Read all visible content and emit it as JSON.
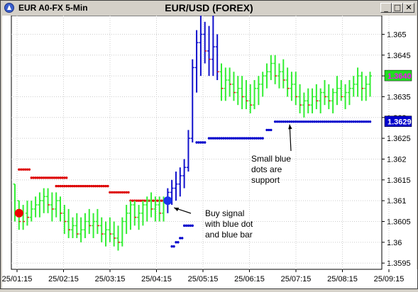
{
  "window": {
    "title": "EUR A0-FX 5-Min",
    "buttons": {
      "minimize": "_",
      "maximize": "□",
      "close": "✕"
    }
  },
  "chart_data": {
    "type": "bar",
    "subtype": "ohlc-price-bars",
    "title": "EUR/USD (FOREX)",
    "x_ticks": [
      "25/01:15",
      "25/02:15",
      "25/03:15",
      "25/04:15",
      "25/05:15",
      "25/06:15",
      "25/07:15",
      "25/08:15",
      "25/09:15"
    ],
    "y_ticks": [
      1.3595,
      1.36,
      1.3605,
      1.361,
      1.3615,
      1.362,
      1.3625,
      1.363,
      1.3635,
      1.364,
      1.3645,
      1.365
    ],
    "y_tick_labels": [
      "1.3595",
      "1.36",
      "1.3605",
      "1.361",
      "1.3615",
      "1.362",
      "1.3625",
      "1.363",
      "1.3635",
      "1.364",
      "1.3645",
      "1.365"
    ],
    "ylim": [
      1.35935,
      1.36545
    ],
    "price_labels": [
      {
        "value": 1.364,
        "text": "1.3640",
        "bg": "#22dd22",
        "fg": "#ff00ff"
      },
      {
        "value": 1.3629,
        "text": "1.3629",
        "bg": "#0000cc",
        "fg": "#ffffff"
      }
    ],
    "bar_colors": {
      "up": "#33ee33",
      "down": "#ee1111",
      "signal": "#1111cc"
    },
    "dot_colors": {
      "resistance": "#dd0000",
      "support": "#0000cc"
    },
    "ohlc": [
      [
        1.3614,
        1.3614,
        1.3605,
        1.3607
      ],
      [
        1.361,
        1.361,
        1.3603,
        1.3605
      ],
      [
        1.3607,
        1.3609,
        1.3603,
        1.3605
      ],
      [
        1.3607,
        1.361,
        1.3604,
        1.3606
      ],
      [
        1.3606,
        1.361,
        1.3605,
        1.3608
      ],
      [
        1.3608,
        1.3611,
        1.3606,
        1.3609
      ],
      [
        1.3609,
        1.3612,
        1.3606,
        1.361
      ],
      [
        1.361,
        1.3613,
        1.3607,
        1.3611
      ],
      [
        1.3611,
        1.3613,
        1.3607,
        1.3609
      ],
      [
        1.3609,
        1.3612,
        1.3605,
        1.3608
      ],
      [
        1.3608,
        1.3612,
        1.3606,
        1.361
      ],
      [
        1.361,
        1.3611,
        1.3605,
        1.3607
      ],
      [
        1.3607,
        1.3609,
        1.3602,
        1.3605
      ],
      [
        1.3605,
        1.3608,
        1.3601,
        1.3603
      ],
      [
        1.3603,
        1.3606,
        1.3601,
        1.3604
      ],
      [
        1.3604,
        1.3607,
        1.3601,
        1.3602
      ],
      [
        1.3602,
        1.3606,
        1.36,
        1.3603
      ],
      [
        1.3603,
        1.3607,
        1.3601,
        1.3605
      ],
      [
        1.3605,
        1.3608,
        1.3602,
        1.3604
      ],
      [
        1.3604,
        1.3607,
        1.3601,
        1.3605
      ],
      [
        1.3605,
        1.3608,
        1.3602,
        1.3604
      ],
      [
        1.3604,
        1.3606,
        1.36,
        1.3602
      ],
      [
        1.3602,
        1.3605,
        1.3599,
        1.3603
      ],
      [
        1.3603,
        1.3606,
        1.36,
        1.3602
      ],
      [
        1.3602,
        1.3605,
        1.3599,
        1.3601
      ],
      [
        1.3601,
        1.3604,
        1.3598,
        1.36
      ],
      [
        1.36,
        1.3606,
        1.3599,
        1.3605
      ],
      [
        1.3605,
        1.3609,
        1.3602,
        1.3607
      ],
      [
        1.3607,
        1.361,
        1.3603,
        1.3609
      ],
      [
        1.3609,
        1.361,
        1.3604,
        1.3606
      ],
      [
        1.3606,
        1.3609,
        1.3603,
        1.3607
      ],
      [
        1.3607,
        1.361,
        1.3604,
        1.3609
      ],
      [
        1.3609,
        1.3611,
        1.3605,
        1.361
      ],
      [
        1.361,
        1.3612,
        1.3606,
        1.3608
      ],
      [
        1.3608,
        1.3611,
        1.3605,
        1.3609
      ],
      [
        1.3609,
        1.3611,
        1.3605,
        1.3607
      ],
      [
        1.3607,
        1.3611,
        1.3605,
        1.361
      ],
      [
        1.361,
        1.3613,
        1.3607,
        1.3612
      ],
      [
        1.3612,
        1.3615,
        1.3609,
        1.3613
      ],
      [
        1.3613,
        1.3617,
        1.361,
        1.3614
      ],
      [
        1.3614,
        1.3618,
        1.3611,
        1.3616
      ],
      [
        1.3616,
        1.362,
        1.3613,
        1.3618
      ],
      [
        1.3618,
        1.3627,
        1.3617,
        1.3625
      ],
      [
        1.3625,
        1.3644,
        1.3624,
        1.3642
      ],
      [
        1.3642,
        1.3651,
        1.3636,
        1.3648
      ],
      [
        1.3648,
        1.3655,
        1.364,
        1.365
      ],
      [
        1.365,
        1.3653,
        1.3643,
        1.3646
      ],
      [
        1.3646,
        1.3652,
        1.364,
        1.3644
      ],
      [
        1.3644,
        1.3655,
        1.364,
        1.3647
      ],
      [
        1.3647,
        1.365,
        1.3639,
        1.3641
      ],
      [
        1.3641,
        1.3643,
        1.3634,
        1.3637
      ],
      [
        1.3637,
        1.3642,
        1.3634,
        1.3639
      ],
      [
        1.3639,
        1.3642,
        1.3635,
        1.3638
      ],
      [
        1.3638,
        1.3641,
        1.3634,
        1.3636
      ],
      [
        1.3636,
        1.364,
        1.3633,
        1.3637
      ],
      [
        1.3637,
        1.364,
        1.3632,
        1.3635
      ],
      [
        1.3635,
        1.3639,
        1.3632,
        1.3634
      ],
      [
        1.3634,
        1.3638,
        1.3631,
        1.3633
      ],
      [
        1.3633,
        1.3639,
        1.3632,
        1.3637
      ],
      [
        1.3637,
        1.364,
        1.3633,
        1.3638
      ],
      [
        1.3638,
        1.3641,
        1.3635,
        1.364
      ],
      [
        1.364,
        1.3643,
        1.3637,
        1.3641
      ],
      [
        1.3641,
        1.3645,
        1.3639,
        1.3643
      ],
      [
        1.3643,
        1.3645,
        1.3638,
        1.364
      ],
      [
        1.364,
        1.3643,
        1.3637,
        1.3641
      ],
      [
        1.3641,
        1.3644,
        1.3637,
        1.3639
      ],
      [
        1.3639,
        1.3642,
        1.3635,
        1.3637
      ],
      [
        1.3637,
        1.3641,
        1.3634,
        1.3638
      ],
      [
        1.3638,
        1.3641,
        1.3633,
        1.3635
      ],
      [
        1.3635,
        1.3638,
        1.3631,
        1.3633
      ],
      [
        1.3633,
        1.3636,
        1.363,
        1.3634
      ],
      [
        1.3634,
        1.3637,
        1.3631,
        1.3633
      ],
      [
        1.3633,
        1.3637,
        1.3631,
        1.3635
      ],
      [
        1.3635,
        1.3638,
        1.3632,
        1.3634
      ],
      [
        1.3634,
        1.3637,
        1.3631,
        1.3636
      ],
      [
        1.3636,
        1.3639,
        1.3633,
        1.3635
      ],
      [
        1.3635,
        1.3638,
        1.3632,
        1.3634
      ],
      [
        1.3634,
        1.3637,
        1.3631,
        1.3636
      ],
      [
        1.3636,
        1.364,
        1.3633,
        1.3637
      ],
      [
        1.3637,
        1.3639,
        1.3634,
        1.3635
      ],
      [
        1.3635,
        1.3638,
        1.3632,
        1.3636
      ],
      [
        1.3636,
        1.3639,
        1.3633,
        1.3637
      ],
      [
        1.3637,
        1.364,
        1.3635,
        1.3638
      ],
      [
        1.3638,
        1.3642,
        1.3635,
        1.364
      ],
      [
        1.364,
        1.3641,
        1.3634,
        1.3637
      ],
      [
        1.3637,
        1.364,
        1.3634,
        1.3638
      ],
      [
        1.3638,
        1.3641,
        1.3635,
        1.364
      ]
    ],
    "signal_bar_range": [
      37,
      49
    ],
    "resistance_dots": [
      {
        "price": 1.36175,
        "from": 1,
        "to": 3
      },
      {
        "price": 1.36155,
        "from": 4,
        "to": 12
      },
      {
        "price": 1.36135,
        "from": 10,
        "to": 22
      },
      {
        "price": 1.3612,
        "from": 23,
        "to": 27
      },
      {
        "price": 1.361,
        "from": 28,
        "to": 36
      }
    ],
    "support_dots": [
      {
        "price": 1.3599,
        "from": 38,
        "to": 38
      },
      {
        "price": 1.36,
        "from": 39,
        "to": 39
      },
      {
        "price": 1.3601,
        "from": 40,
        "to": 40
      },
      {
        "price": 1.3604,
        "from": 41,
        "to": 43
      },
      {
        "price": 1.3624,
        "from": 44,
        "to": 46
      },
      {
        "price": 1.3625,
        "from": 47,
        "to": 60
      },
      {
        "price": 1.3627,
        "from": 61,
        "to": 62
      },
      {
        "price": 1.3629,
        "from": 63,
        "to": 86
      }
    ],
    "signals": [
      {
        "type": "sell",
        "bar": 1,
        "price": 1.3607,
        "color": "#ee0000"
      },
      {
        "type": "buy",
        "bar": 37,
        "price": 1.361,
        "color": "#1a33ee"
      }
    ],
    "annotations": [
      {
        "id": "buy",
        "lines": [
          "Buy signal",
          "with blue dot",
          "and blue bar"
        ],
        "arrow_to_bar": 38,
        "arrow_to_price": 1.3609
      },
      {
        "id": "support",
        "lines": [
          "Small blue",
          "dots are",
          "support"
        ],
        "arrow_to_bar": 66,
        "arrow_to_price": 1.3629
      }
    ]
  }
}
